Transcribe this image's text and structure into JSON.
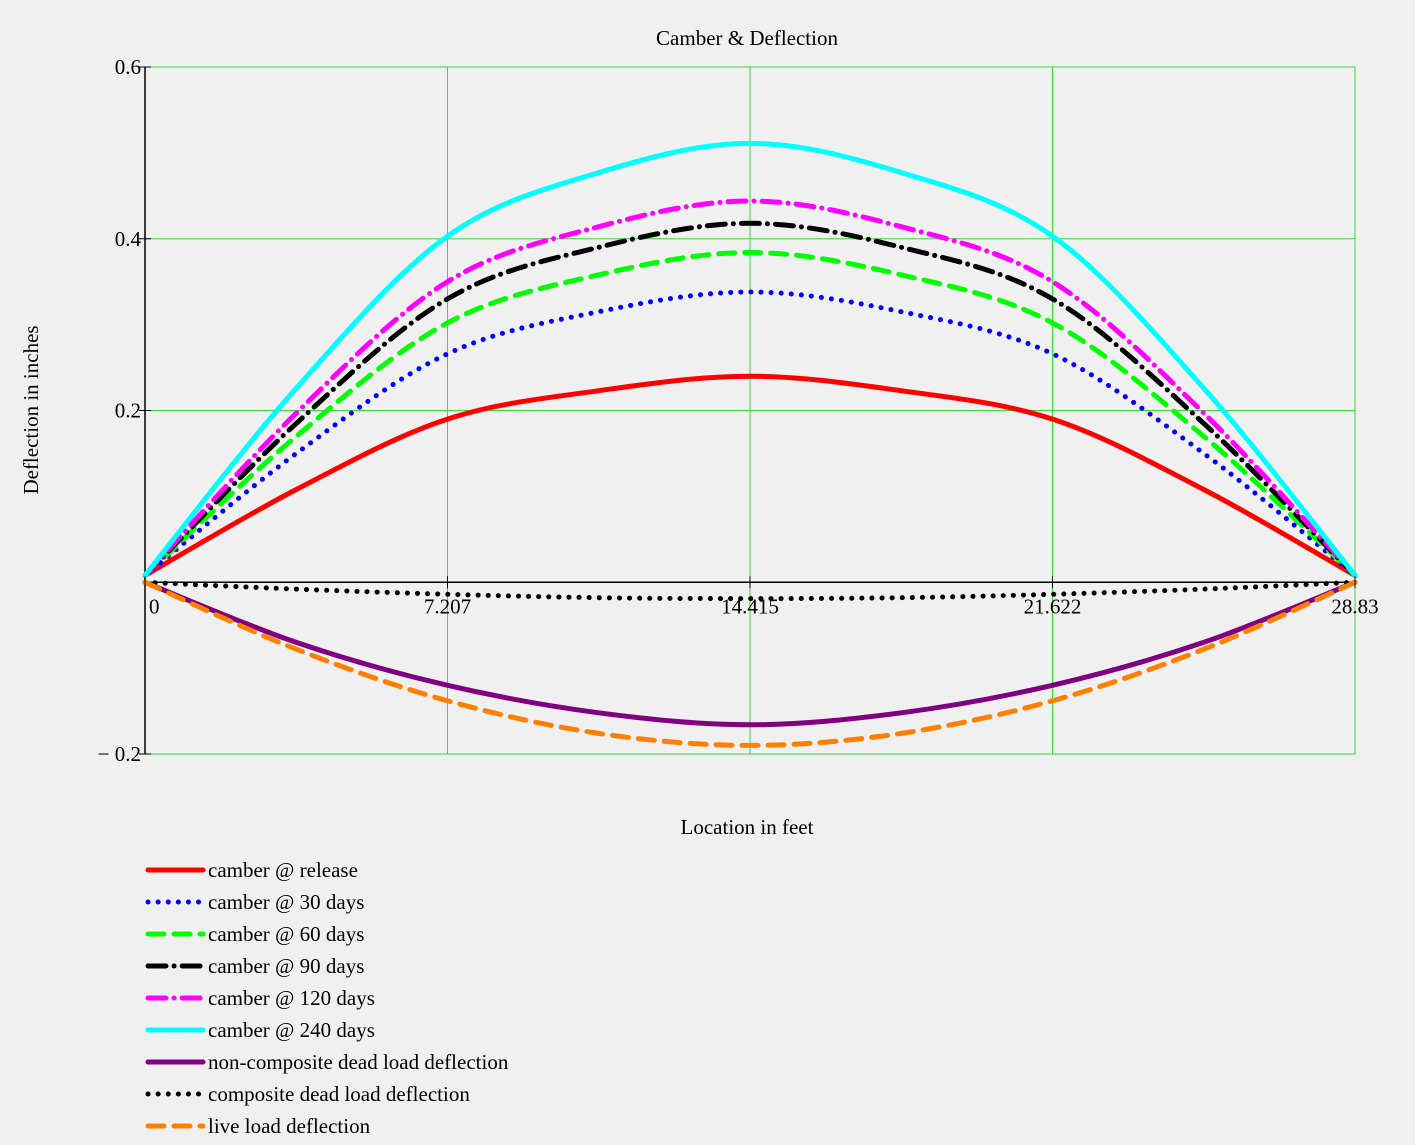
{
  "chart_data": {
    "type": "line",
    "title": "Camber & Deflection",
    "xlabel": "Location in feet",
    "ylabel": "Deflection in inches",
    "xlim": [
      0,
      28.83
    ],
    "ylim": [
      -0.2,
      0.6
    ],
    "x_ticks": [
      0,
      7.207,
      14.415,
      21.622,
      28.83
    ],
    "x_tick_labels": [
      "0",
      "7.207",
      "14.415",
      "21.622",
      "28.83"
    ],
    "y_ticks": [
      -0.2,
      0.2,
      0.4,
      0.6
    ],
    "y_tick_labels": [
      "− 0.2",
      "0.2",
      "0.4",
      "0.6"
    ],
    "grid": true,
    "grid_color": "#33dd33",
    "legend_position": "bottom-left",
    "x": [
      0,
      3.604,
      7.207,
      10.811,
      14.415,
      18.019,
      21.622,
      25.226,
      28.83
    ],
    "series": [
      {
        "name": "camber @ release",
        "color": "#ff0000",
        "style": "solid",
        "values": [
          0.008,
          0.108,
          0.19,
          0.223,
          0.24,
          0.223,
          0.19,
          0.108,
          0.008
        ]
      },
      {
        "name": "camber @ 30 days",
        "color": "#0000ff",
        "style": "dotted",
        "values": [
          0.008,
          0.15,
          0.266,
          0.315,
          0.338,
          0.315,
          0.266,
          0.15,
          0.008
        ]
      },
      {
        "name": "camber @ 60 days",
        "color": "#00ff00",
        "style": "dashed",
        "values": [
          0.008,
          0.17,
          0.302,
          0.358,
          0.384,
          0.358,
          0.302,
          0.17,
          0.008
        ]
      },
      {
        "name": "camber @ 90 days",
        "color": "#000000",
        "style": "dashdot",
        "values": [
          0.008,
          0.185,
          0.33,
          0.39,
          0.418,
          0.39,
          0.33,
          0.185,
          0.008
        ]
      },
      {
        "name": "camber @ 120 days",
        "color": "#ff00ff",
        "style": "dashdot",
        "values": [
          0.008,
          0.197,
          0.35,
          0.414,
          0.444,
          0.414,
          0.35,
          0.197,
          0.008
        ]
      },
      {
        "name": "camber @ 240 days",
        "color": "#00ffff",
        "style": "solid",
        "values": [
          0.008,
          0.226,
          0.403,
          0.477,
          0.511,
          0.477,
          0.403,
          0.226,
          0.008
        ]
      },
      {
        "name": "non-composite dead load deflection",
        "color": "#800080",
        "style": "solid",
        "values": [
          0.0,
          -0.07,
          -0.12,
          -0.152,
          -0.166,
          -0.152,
          -0.12,
          -0.07,
          0.0
        ]
      },
      {
        "name": "composite dead load deflection",
        "color": "#000000",
        "style": "dotted",
        "values": [
          0.0,
          -0.008,
          -0.014,
          -0.018,
          -0.019,
          -0.018,
          -0.014,
          -0.008,
          0.0
        ]
      },
      {
        "name": "live load deflection",
        "color": "#ff8000",
        "style": "dashed",
        "values": [
          0.0,
          -0.078,
          -0.138,
          -0.176,
          -0.19,
          -0.176,
          -0.138,
          -0.078,
          0.0
        ]
      }
    ]
  }
}
